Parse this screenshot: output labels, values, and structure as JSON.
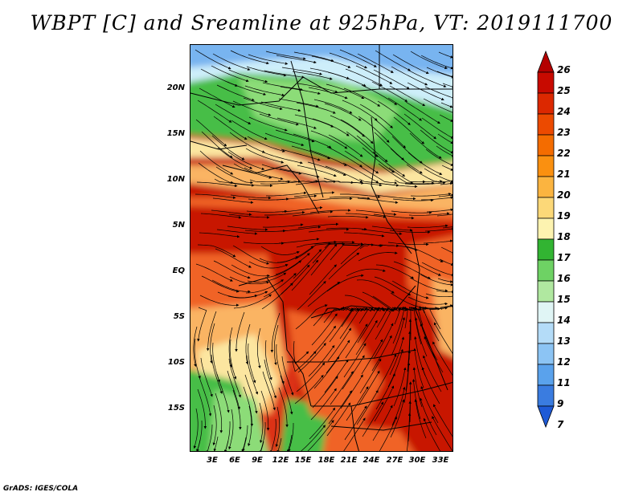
{
  "title": "WBPT [C] and Sreamline at 925hPa, VT: 2019111700",
  "credit": "GrADS: IGES/COLA",
  "latitude_labels": [
    "20N",
    "15N",
    "10N",
    "5N",
    "EQ",
    "5S",
    "10S",
    "15S"
  ],
  "longitude_labels": [
    "3E",
    "6E",
    "9E",
    "12E",
    "15E",
    "18E",
    "21E",
    "24E",
    "27E",
    "30E",
    "33E"
  ],
  "colorbar": {
    "labels": [
      "26",
      "25",
      "24",
      "23",
      "22",
      "21",
      "20",
      "19",
      "18",
      "17",
      "16",
      "15",
      "14",
      "13",
      "12",
      "11",
      "9",
      "7"
    ],
    "colors": [
      "#b40000",
      "#c80a00",
      "#dc2800",
      "#ec4a00",
      "#f46c00",
      "#fa9010",
      "#fbb440",
      "#fcd878",
      "#fdf3b0",
      "#32b432",
      "#6ed264",
      "#b0e8a0",
      "#e0f5f5",
      "#b4dcf8",
      "#8cc4f4",
      "#5aa2ec",
      "#3a7ce0",
      "#1e5ad6"
    ]
  },
  "map_colors": {
    "deep_red": "#c81400",
    "red": "#dc3214",
    "orange": "#f06428",
    "light_orange": "#fab464",
    "pale": "#fce6a0",
    "green": "#46be46",
    "light_green": "#8cdc78",
    "pale_blue": "#cdeefa",
    "blue": "#78b4f0"
  }
}
